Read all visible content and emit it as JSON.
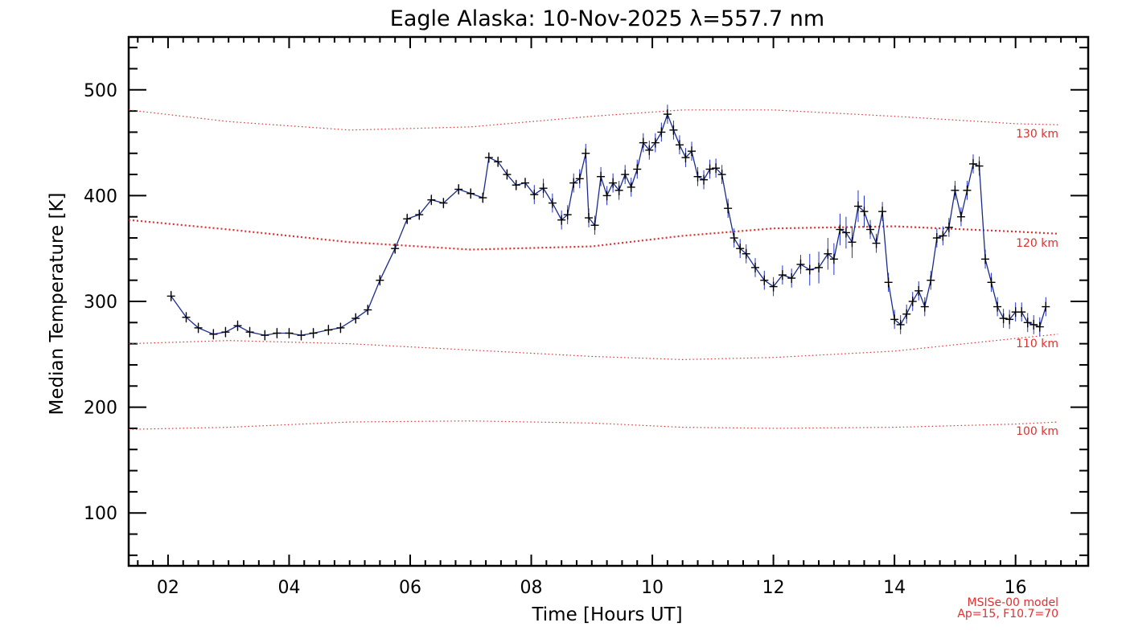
{
  "chart_data": {
    "type": "line",
    "title": "Eagle Alaska: 10-Nov-2025 λ=557.7 nm",
    "xlabel": "Time [Hours UT]",
    "ylabel": "Median Temperature [K]",
    "xlim": [
      1.35,
      17.2
    ],
    "ylim": [
      50,
      550
    ],
    "x_ticks": [
      2,
      4,
      6,
      8,
      10,
      12,
      14,
      16
    ],
    "x_tick_labels": [
      "02",
      "04",
      "06",
      "08",
      "10",
      "12",
      "14",
      "16"
    ],
    "y_ticks": [
      100,
      200,
      300,
      400,
      500
    ],
    "y_tick_labels": [
      "100",
      "200",
      "300",
      "400",
      "500"
    ],
    "grid": false,
    "colors": {
      "data_line": "#1a2b8c",
      "error_bar": "#2233cc",
      "marker": "#000000",
      "model": "#e03030"
    },
    "series": [
      {
        "marker": "plus",
        "x": [
          2.05,
          2.3,
          2.5,
          2.75,
          2.95,
          3.15,
          3.35,
          3.6,
          3.8,
          4.0,
          4.2,
          4.4,
          4.65,
          4.85,
          5.1,
          5.3,
          5.5,
          5.75,
          5.95,
          6.15,
          6.35,
          6.55,
          6.8,
          7.0,
          7.2,
          7.3,
          7.45,
          7.6,
          7.75,
          7.9,
          8.05,
          8.2,
          8.35,
          8.5,
          8.6,
          8.7,
          8.8,
          8.9,
          8.95,
          9.05,
          9.15,
          9.25,
          9.35,
          9.45,
          9.55,
          9.65,
          9.75,
          9.85,
          9.95,
          10.05,
          10.15,
          10.25,
          10.35,
          10.45,
          10.55,
          10.65,
          10.75,
          10.85,
          10.95,
          11.05,
          11.15,
          11.25,
          11.35,
          11.45,
          11.55,
          11.7,
          11.85,
          12.0,
          12.15,
          12.3,
          12.45,
          12.6,
          12.75,
          12.9,
          13.0,
          13.1,
          13.2,
          13.3,
          13.4,
          13.5,
          13.6,
          13.7,
          13.8,
          13.9,
          14.0,
          14.1,
          14.2,
          14.3,
          14.4,
          14.5,
          14.6,
          14.7,
          14.8,
          14.9,
          15.0,
          15.1,
          15.2,
          15.3,
          15.4,
          15.5,
          15.6,
          15.7,
          15.8,
          15.9,
          16.0,
          16.1,
          16.2,
          16.3,
          16.4,
          16.5
        ],
        "y": [
          305,
          285,
          275,
          269,
          271,
          277,
          271,
          268,
          270,
          270,
          268,
          270,
          273,
          275,
          284,
          292,
          320,
          350,
          378,
          382,
          396,
          393,
          406,
          402,
          398,
          436,
          432,
          420,
          410,
          412,
          401,
          407,
          393,
          377,
          382,
          412,
          416,
          440,
          379,
          372,
          418,
          400,
          412,
          405,
          420,
          408,
          425,
          450,
          443,
          450,
          460,
          477,
          462,
          448,
          436,
          442,
          418,
          415,
          425,
          426,
          420,
          388,
          360,
          350,
          345,
          332,
          320,
          314,
          325,
          322,
          335,
          330,
          332,
          345,
          340,
          368,
          365,
          356,
          390,
          385,
          368,
          355,
          385,
          318,
          283,
          278,
          288,
          300,
          310,
          295,
          320,
          360,
          362,
          370,
          405,
          380,
          405,
          430,
          428,
          340,
          318,
          295,
          284,
          283,
          290,
          290,
          280,
          278,
          276,
          295
        ]
      }
    ],
    "model_curves": [
      {
        "label": "130 km",
        "x": [
          1.35,
          3,
          5,
          7,
          9,
          10.5,
          12,
          14,
          16,
          16.7
        ],
        "y": [
          481,
          470,
          462,
          465,
          475,
          481,
          481,
          475,
          468,
          467
        ]
      },
      {
        "label": "120 km",
        "x": [
          1.35,
          3,
          5,
          7,
          9,
          10.5,
          12,
          14,
          16,
          16.7
        ],
        "y": [
          377,
          368,
          356,
          349,
          352,
          362,
          369,
          371,
          366,
          364
        ]
      },
      {
        "label": "110 km",
        "x": [
          1.35,
          3,
          5,
          7,
          9,
          10.5,
          12,
          14,
          16,
          16.7
        ],
        "y": [
          260,
          263,
          260,
          254,
          248,
          245,
          247,
          253,
          265,
          269
        ]
      },
      {
        "label": "100 km",
        "x": [
          1.35,
          3,
          5,
          7,
          9,
          10.5,
          12,
          14,
          16,
          16.7
        ],
        "y": [
          179,
          181,
          186,
          187,
          185,
          181,
          180,
          181,
          184,
          186
        ]
      }
    ],
    "annotations": [
      "MSISe-00 model",
      "Ap=15, F10.7=70"
    ]
  }
}
